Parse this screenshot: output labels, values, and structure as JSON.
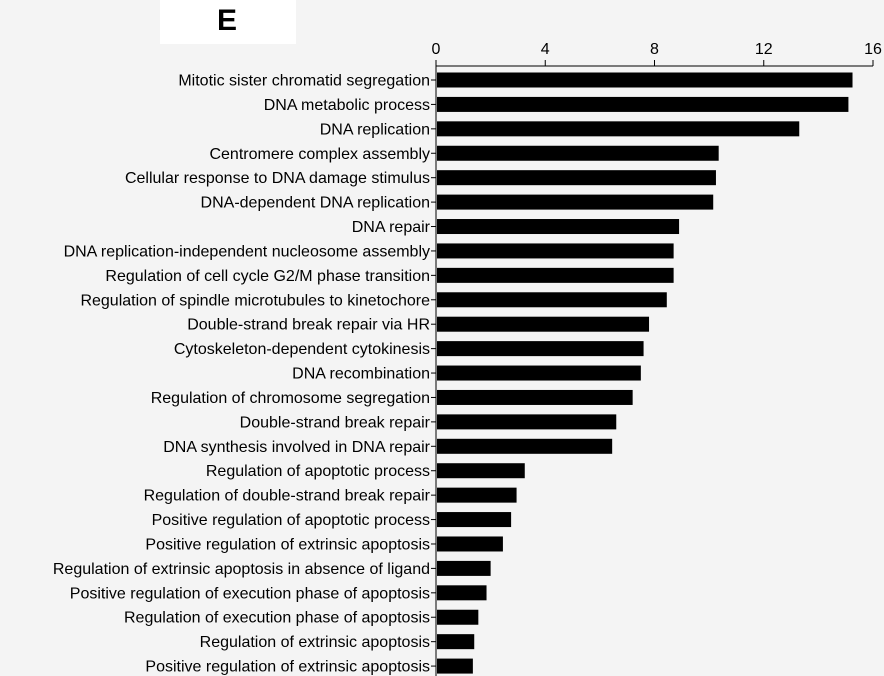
{
  "panel_label": "E",
  "chart_data": {
    "type": "bar",
    "orientation": "horizontal",
    "categories": [
      "Mitotic sister chromatid segregation",
      "DNA metabolic process",
      "DNA replication",
      "Centromere complex assembly",
      "Cellular response to DNA damage stimulus",
      "DNA-dependent DNA replication",
      "DNA repair",
      "DNA replication-independent nucleosome assembly",
      "Regulation of cell cycle G2/M phase transition",
      "Regulation of spindle microtubules to kinetochore",
      "Double-strand break repair via HR",
      "Cytoskeleton-dependent cytokinesis",
      "DNA recombination",
      "Regulation of chromosome segregation",
      "Double-strand break repair",
      "DNA synthesis involved in DNA repair",
      "Regulation of apoptotic process",
      "Regulation of double-strand break repair",
      "Positive regulation of apoptotic process",
      "Positive regulation of extrinsic apoptosis",
      "Regulation of extrinsic apoptosis in absence of ligand",
      "Positive regulation of execution phase of apoptosis",
      "Regulation of execution phase of apoptosis",
      "Regulation of extrinsic apoptosis",
      "Positive regulation of extrinsic apoptosis"
    ],
    "values": [
      15.25,
      15.1,
      13.3,
      10.35,
      10.25,
      10.15,
      8.9,
      8.7,
      8.7,
      8.45,
      7.8,
      7.6,
      7.5,
      7.2,
      6.6,
      6.45,
      3.25,
      2.95,
      2.75,
      2.45,
      2.0,
      1.85,
      1.55,
      1.4,
      1.35
    ],
    "xlim": [
      0,
      16
    ],
    "xticks": [
      0,
      4,
      8,
      12,
      16
    ],
    "axis_position": "top",
    "grid": false,
    "bar_color": "#000000",
    "title": "",
    "xlabel": "",
    "ylabel": ""
  }
}
